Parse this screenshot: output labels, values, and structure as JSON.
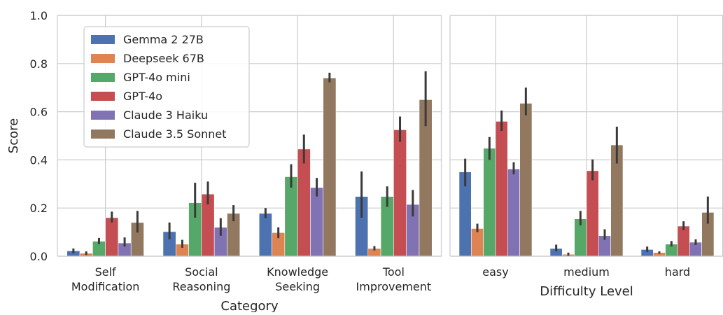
{
  "chart_data": [
    {
      "type": "bar",
      "xlabel": "Category",
      "ylabel": "Score",
      "ylim": [
        0,
        1.0
      ],
      "yticks": [
        "0.0",
        "0.2",
        "0.4",
        "0.6",
        "0.8",
        "1.0"
      ],
      "categories": [
        [
          "Self",
          "Modification"
        ],
        [
          "Social",
          "Reasoning"
        ],
        [
          "Knowledge",
          "Seeking"
        ],
        [
          "Tool",
          "Improvement"
        ]
      ],
      "series": [
        {
          "name": "Gemma 2 27B",
          "color": "#4c72b0",
          "values": [
            0.022,
            0.102,
            0.178,
            0.248
          ],
          "ci": [
            [
              0.012,
              0.032
            ],
            [
              0.07,
              0.14
            ],
            [
              0.158,
              0.2
            ],
            [
              0.16,
              0.352
            ]
          ]
        },
        {
          "name": "Deepseek 67B",
          "color": "#dd8452",
          "values": [
            0.012,
            0.05,
            0.098,
            0.032
          ],
          "ci": [
            [
              0.005,
              0.02
            ],
            [
              0.035,
              0.068
            ],
            [
              0.075,
              0.12
            ],
            [
              0.024,
              0.042
            ]
          ]
        },
        {
          "name": "GPT-4o mini",
          "color": "#55a868",
          "values": [
            0.062,
            0.222,
            0.33,
            0.248
          ],
          "ci": [
            [
              0.05,
              0.076
            ],
            [
              0.16,
              0.305
            ],
            [
              0.285,
              0.382
            ],
            [
              0.205,
              0.29
            ]
          ]
        },
        {
          "name": "GPT-4o",
          "color": "#c44e52",
          "values": [
            0.16,
            0.258,
            0.445,
            0.525
          ],
          "ci": [
            [
              0.14,
              0.185
            ],
            [
              0.215,
              0.31
            ],
            [
              0.385,
              0.505
            ],
            [
              0.475,
              0.58
            ]
          ]
        },
        {
          "name": "Claude 3 Haiku",
          "color": "#8172b3",
          "values": [
            0.055,
            0.12,
            0.285,
            0.215
          ],
          "ci": [
            [
              0.04,
              0.078
            ],
            [
              0.085,
              0.158
            ],
            [
              0.248,
              0.325
            ],
            [
              0.165,
              0.275
            ]
          ]
        },
        {
          "name": "Claude 3.5 Sonnet",
          "color": "#937860",
          "values": [
            0.14,
            0.178,
            0.74,
            0.65
          ],
          "ci": [
            [
              0.098,
              0.188
            ],
            [
              0.145,
              0.212
            ],
            [
              0.722,
              0.762
            ],
            [
              0.54,
              0.768
            ]
          ]
        }
      ],
      "legend": "top-left",
      "grid": true
    },
    {
      "type": "bar",
      "xlabel": "Difficulty Level",
      "ylabel": "",
      "ylim": [
        0,
        1.0
      ],
      "categories": [
        [
          "easy"
        ],
        [
          "medium"
        ],
        [
          "hard"
        ]
      ],
      "series": [
        {
          "name": "Gemma 2 27B",
          "color": "#4c72b0",
          "values": [
            0.35,
            0.032,
            0.028
          ],
          "ci": [
            [
              0.29,
              0.405
            ],
            [
              0.02,
              0.048
            ],
            [
              0.018,
              0.04
            ]
          ]
        },
        {
          "name": "Deepseek 67B",
          "color": "#dd8452",
          "values": [
            0.115,
            0.008,
            0.015
          ],
          "ci": [
            [
              0.1,
              0.135
            ],
            [
              0.002,
              0.015
            ],
            [
              0.01,
              0.02
            ]
          ]
        },
        {
          "name": "GPT-4o mini",
          "color": "#55a868",
          "values": [
            0.448,
            0.155,
            0.05
          ],
          "ci": [
            [
              0.4,
              0.495
            ],
            [
              0.128,
              0.188
            ],
            [
              0.04,
              0.063
            ]
          ]
        },
        {
          "name": "GPT-4o",
          "color": "#c44e52",
          "values": [
            0.56,
            0.355,
            0.125
          ],
          "ci": [
            [
              0.52,
              0.605
            ],
            [
              0.315,
              0.402
            ],
            [
              0.108,
              0.145
            ]
          ]
        },
        {
          "name": "Claude 3 Haiku",
          "color": "#8172b3",
          "values": [
            0.362,
            0.085,
            0.058
          ],
          "ci": [
            [
              0.34,
              0.39
            ],
            [
              0.068,
              0.112
            ],
            [
              0.047,
              0.07
            ]
          ]
        },
        {
          "name": "Claude 3.5 Sonnet",
          "color": "#937860",
          "values": [
            0.635,
            0.462,
            0.182
          ],
          "ci": [
            [
              0.585,
              0.7
            ],
            [
              0.385,
              0.538
            ],
            [
              0.135,
              0.248
            ]
          ]
        }
      ],
      "grid": true
    }
  ]
}
